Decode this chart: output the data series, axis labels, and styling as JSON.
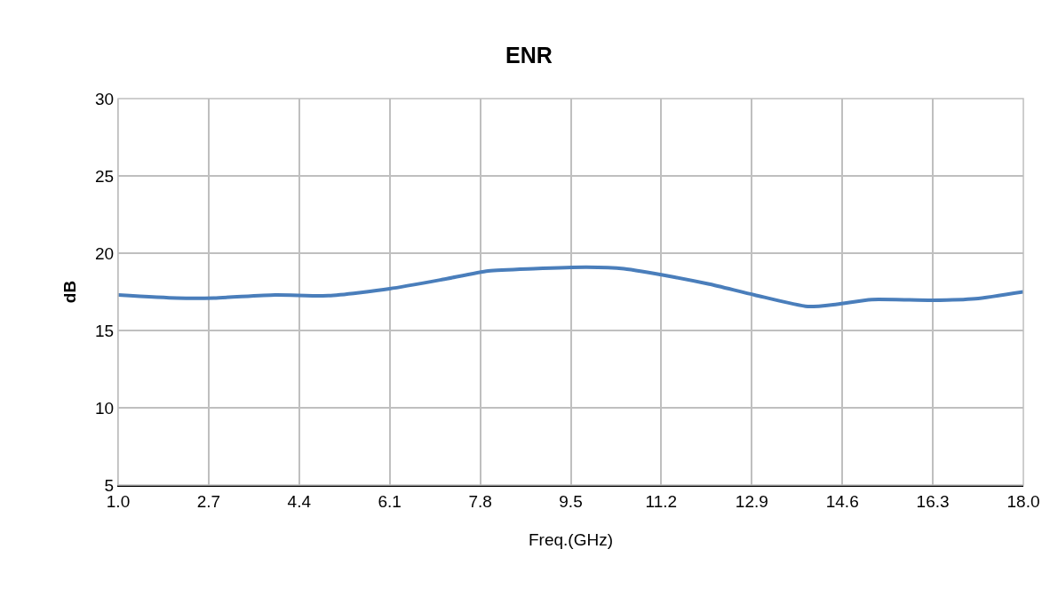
{
  "chart_data": {
    "type": "line",
    "title": "ENR",
    "xlabel": "Freq.(GHz)",
    "ylabel": "dB",
    "x": [
      1.0,
      2.1,
      2.8,
      3.95,
      4.95,
      6.1,
      7.1,
      7.95,
      8.8,
      9.8,
      10.5,
      11.45,
      12.1,
      12.95,
      13.95,
      14.5,
      15.15,
      16.3,
      17.1,
      18.0
    ],
    "series": [
      {
        "color": "#4a7ebb",
        "values": [
          17.3,
          17.1,
          17.1,
          17.3,
          17.25,
          17.7,
          18.3,
          18.85,
          19.0,
          19.1,
          19.0,
          18.45,
          18.0,
          17.3,
          16.55,
          16.7,
          17.0,
          16.95,
          17.05,
          17.5
        ]
      }
    ],
    "xlim": [
      1,
      18
    ],
    "xticks": [
      {
        "value": 1,
        "label": "1.0"
      },
      2.7,
      4.4,
      6.1,
      7.8,
      9.5,
      11.2,
      12.9,
      14.6,
      16.3,
      {
        "value": 18,
        "label": "18.0"
      }
    ],
    "ylim": [
      5,
      30
    ],
    "yticks": [
      5,
      10,
      15,
      20,
      25,
      30
    ],
    "grid": true,
    "marker": "none",
    "line_style": "solid"
  }
}
